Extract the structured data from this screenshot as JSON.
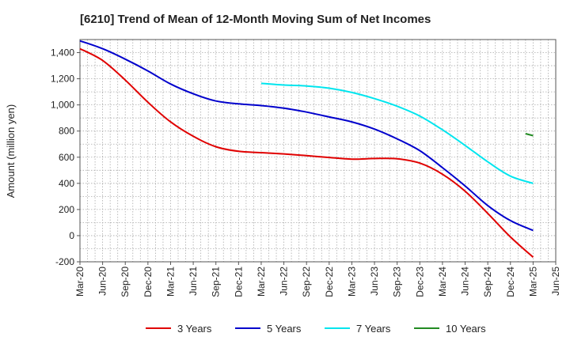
{
  "chart_data": {
    "type": "line",
    "title": "[6210]  Trend of Mean of 12-Month Moving Sum of Net Incomes",
    "xlabel": "",
    "ylabel": "Amount (million yen)",
    "ylim": [
      -200,
      1500
    ],
    "yticks": [
      -200,
      0,
      200,
      400,
      600,
      800,
      1000,
      1200,
      1400
    ],
    "ytick_labels": [
      "-200",
      "0",
      "200",
      "400",
      "600",
      "800",
      "1,000",
      "1,200",
      "1,400"
    ],
    "xtick_labels": [
      "Mar-20",
      "Jun-20",
      "Sep-20",
      "Dec-20",
      "Mar-21",
      "Jun-21",
      "Sep-21",
      "Dec-21",
      "Mar-22",
      "Jun-22",
      "Sep-22",
      "Dec-22",
      "Mar-23",
      "Jun-23",
      "Sep-23",
      "Dec-23",
      "Mar-24",
      "Jun-24",
      "Sep-24",
      "Dec-24",
      "Mar-25",
      "Jun-25"
    ],
    "grid": true,
    "legend_position": "bottom",
    "series": [
      {
        "name": "3 Years",
        "color": "#e00000",
        "start_index": 0,
        "values": [
          1430,
          1340,
          1190,
          1020,
          870,
          760,
          680,
          645,
          635,
          625,
          612,
          598,
          585,
          590,
          588,
          555,
          470,
          340,
          170,
          -10,
          -165
        ]
      },
      {
        "name": "5 Years",
        "color": "#0000cc",
        "start_index": 0,
        "values": [
          1490,
          1430,
          1350,
          1260,
          1160,
          1085,
          1030,
          1008,
          995,
          975,
          945,
          908,
          870,
          815,
          740,
          650,
          520,
          380,
          230,
          115,
          40
        ]
      },
      {
        "name": "7 Years",
        "color": "#00e5ee",
        "start_index": 8,
        "values": [
          1165,
          1152,
          1145,
          1128,
          1095,
          1048,
          990,
          915,
          810,
          690,
          565,
          455,
          400
        ]
      },
      {
        "name": "10 Years",
        "color": "#228b22",
        "start_index": 20,
        "values": [
          770
        ],
        "segment": [
          780,
          765
        ]
      }
    ]
  }
}
